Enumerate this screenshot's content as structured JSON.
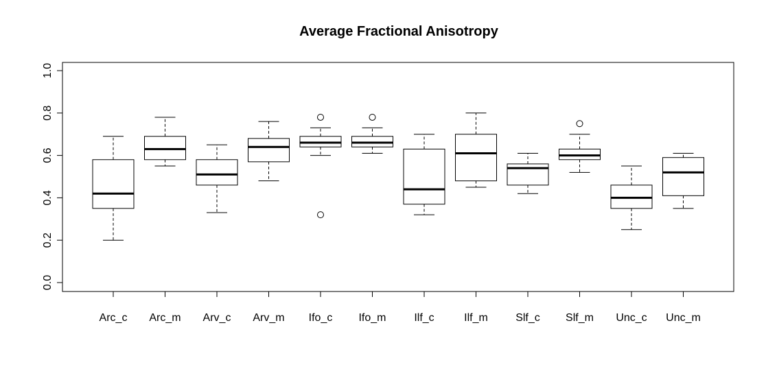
{
  "chart_data": {
    "type": "boxplot",
    "title": "Average Fractional Anisotropy",
    "xlabel": "",
    "ylabel": "",
    "ylim": [
      0,
      1
    ],
    "yticks": [
      "0.0",
      "0.2",
      "0.4",
      "0.6",
      "0.8",
      "1.0"
    ],
    "categories": [
      "Arc_c",
      "Arc_m",
      "Arv_c",
      "Arv_m",
      "Ifo_c",
      "Ifo_m",
      "Ilf_c",
      "Ilf_m",
      "Slf_c",
      "Slf_m",
      "Unc_c",
      "Unc_m"
    ],
    "boxes": [
      {
        "name": "Arc_c",
        "whisker_low": 0.2,
        "q1": 0.35,
        "median": 0.42,
        "q3": 0.58,
        "whisker_high": 0.69,
        "outliers": []
      },
      {
        "name": "Arc_m",
        "whisker_low": 0.55,
        "q1": 0.58,
        "median": 0.63,
        "q3": 0.69,
        "whisker_high": 0.78,
        "outliers": []
      },
      {
        "name": "Arv_c",
        "whisker_low": 0.33,
        "q1": 0.46,
        "median": 0.51,
        "q3": 0.58,
        "whisker_high": 0.65,
        "outliers": []
      },
      {
        "name": "Arv_m",
        "whisker_low": 0.48,
        "q1": 0.57,
        "median": 0.64,
        "q3": 0.68,
        "whisker_high": 0.76,
        "outliers": []
      },
      {
        "name": "Ifo_c",
        "whisker_low": 0.6,
        "q1": 0.64,
        "median": 0.66,
        "q3": 0.69,
        "whisker_high": 0.73,
        "outliers": [
          0.78,
          0.32
        ]
      },
      {
        "name": "Ifo_m",
        "whisker_low": 0.61,
        "q1": 0.64,
        "median": 0.66,
        "q3": 0.69,
        "whisker_high": 0.73,
        "outliers": [
          0.78
        ]
      },
      {
        "name": "Ilf_c",
        "whisker_low": 0.32,
        "q1": 0.37,
        "median": 0.44,
        "q3": 0.63,
        "whisker_high": 0.7,
        "outliers": []
      },
      {
        "name": "Ilf_m",
        "whisker_low": 0.45,
        "q1": 0.48,
        "median": 0.61,
        "q3": 0.7,
        "whisker_high": 0.8,
        "outliers": []
      },
      {
        "name": "Slf_c",
        "whisker_low": 0.42,
        "q1": 0.46,
        "median": 0.54,
        "q3": 0.56,
        "whisker_high": 0.61,
        "outliers": []
      },
      {
        "name": "Slf_m",
        "whisker_low": 0.52,
        "q1": 0.58,
        "median": 0.6,
        "q3": 0.63,
        "whisker_high": 0.7,
        "outliers": [
          0.75
        ]
      },
      {
        "name": "Unc_c",
        "whisker_low": 0.25,
        "q1": 0.35,
        "median": 0.4,
        "q3": 0.46,
        "whisker_high": 0.55,
        "outliers": []
      },
      {
        "name": "Unc_m",
        "whisker_low": 0.35,
        "q1": 0.41,
        "median": 0.52,
        "q3": 0.59,
        "whisker_high": 0.61,
        "outliers": []
      }
    ],
    "grid": false,
    "legend": "none"
  }
}
